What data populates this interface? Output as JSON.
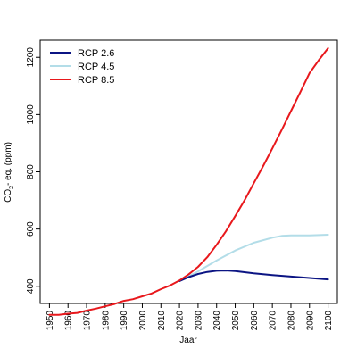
{
  "chart_data": {
    "type": "line",
    "xlabel": "Jaar",
    "ylabel_main": "CO",
    "ylabel_sub": "2",
    "ylabel_rest": "- eq. (ppm)",
    "xlim": [
      1945,
      2105
    ],
    "ylim": [
      340,
      1260
    ],
    "x_ticks": [
      1950,
      1960,
      1970,
      1980,
      1990,
      2000,
      2010,
      2020,
      2030,
      2040,
      2050,
      2060,
      2070,
      2080,
      2090,
      2100
    ],
    "y_ticks": [
      400,
      600,
      800,
      1000,
      1200
    ],
    "legend_position": "top-left",
    "series": [
      {
        "name": "RCP 2.6",
        "color": "#0b1483",
        "x": [
          2020,
          2025,
          2030,
          2035,
          2040,
          2045,
          2050,
          2055,
          2060,
          2070,
          2080,
          2090,
          2100
        ],
        "values": [
          418,
          432,
          443,
          450,
          454,
          455,
          453,
          449,
          445,
          439,
          434,
          429,
          424
        ]
      },
      {
        "name": "RCP 4.5",
        "color": "#b3dde8",
        "x": [
          2020,
          2030,
          2040,
          2050,
          2060,
          2070,
          2075,
          2080,
          2085,
          2090,
          2095,
          2100
        ],
        "values": [
          418,
          452,
          490,
          525,
          552,
          570,
          576,
          578,
          578,
          578,
          579,
          580
        ]
      },
      {
        "name": "RCP 8.5",
        "color": "#e8181c",
        "x": [
          1950,
          1955,
          1960,
          1965,
          1970,
          1975,
          1980,
          1985,
          1990,
          1995,
          2000,
          2005,
          2010,
          2015,
          2020,
          2025,
          2030,
          2035,
          2040,
          2045,
          2050,
          2055,
          2060,
          2065,
          2070,
          2075,
          2080,
          2085,
          2090,
          2095,
          2100
        ],
        "values": [
          300,
          300,
          304,
          307,
          315,
          322,
          330,
          338,
          349,
          355,
          365,
          375,
          390,
          403,
          420,
          442,
          468,
          502,
          545,
          592,
          645,
          700,
          760,
          820,
          882,
          946,
          1012,
          1078,
          1145,
          1190,
          1232
        ]
      }
    ]
  }
}
